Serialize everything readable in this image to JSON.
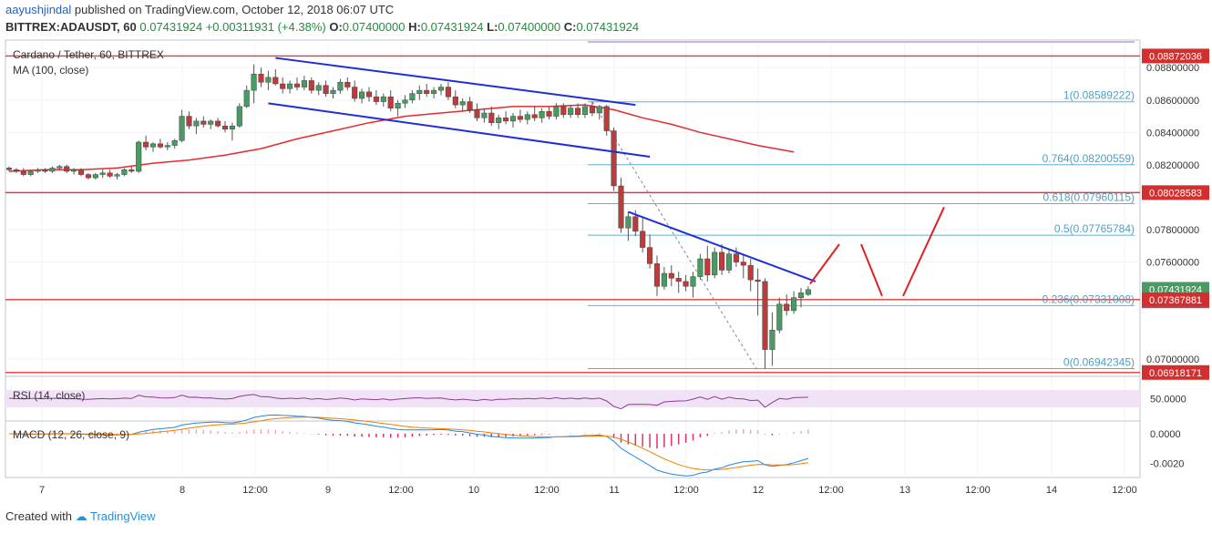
{
  "header": {
    "author": "aayushjindal",
    "published": "published on TradingView.com, October 12, 2018 06:07 UTC",
    "symbol": "BITTREX:ADAUSDT, 60",
    "last": "0.07431924",
    "change": "+0.00311931 (+4.38%)",
    "o_label": "O:",
    "o": "0.07400000",
    "h_label": "H:",
    "h": "0.07431924",
    "l_label": "L:",
    "l": "0.07400000",
    "c_label": "C:",
    "c": "0.07431924"
  },
  "legend": {
    "title": "Cardano / Tether, 60, BITTREX",
    "ma": "MA (100, close)",
    "rsi": "RSI (14, close)",
    "macd": "MACD (12, 26, close, 9)"
  },
  "footer": {
    "created": "Created with",
    "brand": "TradingView"
  },
  "colors": {
    "up": "#4a9a63",
    "down": "#c0393b",
    "ma": "#e52b2b",
    "hline": "#e53935",
    "trend": "#1f2fd6",
    "fib": "#5fb2d6",
    "rsi": "#8e3a99",
    "rsiband": "#f0e3f5",
    "macd": "#1e88e5",
    "signal": "#f57c00",
    "badge": "#d32f2f",
    "time_badge": "#4a7d9b"
  },
  "chart_data": {
    "type": "candlestick",
    "price_range": [
      0.069,
      0.0897
    ],
    "price_ticks": [
      "0.08800000",
      "0.08600000",
      "0.08400000",
      "0.08200000",
      "0.07800000",
      "0.07600000",
      "0.07000000"
    ],
    "x_ticks": [
      "7",
      "8",
      "12:00",
      "9",
      "12:00",
      "10",
      "12:00",
      "11",
      "12:00",
      "12",
      "12:00",
      "13",
      "12:00",
      "14",
      "12:00"
    ],
    "price_badges": [
      {
        "label": "0.08872036",
        "value": 0.08872036,
        "kind": "hline"
      },
      {
        "label": "0.08028583",
        "value": 0.08028583,
        "kind": "hline"
      },
      {
        "label": "0.07431924",
        "value": 0.07431924,
        "kind": "last"
      },
      {
        "label": "52:59",
        "value": 0.0736,
        "kind": "time"
      },
      {
        "label": "0.07367881",
        "value": 0.07367881,
        "kind": "hline"
      },
      {
        "label": "0.06918171",
        "value": 0.06918171,
        "kind": "hline"
      }
    ],
    "horizontal_lines": [
      0.08872036,
      0.08028583,
      0.07367881,
      0.06918171
    ],
    "fib_levels": [
      {
        "ratio": "1",
        "label": "1(0.08589222)",
        "value": 0.08589222
      },
      {
        "ratio": "0.764",
        "label": "0.764(0.08200559)",
        "value": 0.08200559
      },
      {
        "ratio": "0.618",
        "label": "0.618(0.07960115)",
        "value": 0.07960115
      },
      {
        "ratio": "0.5",
        "label": "0.5(0.07765784)",
        "value": 0.07765784
      },
      {
        "ratio": "0.236",
        "label": "0.236(0.07331008)",
        "value": 0.07331008
      },
      {
        "ratio": "0",
        "label": "0(0.06942345)",
        "value": 0.06942345
      }
    ],
    "candles": [
      [
        0.0818,
        0.0819,
        0.0816,
        0.0817
      ],
      [
        0.0817,
        0.0818,
        0.0815,
        0.0816
      ],
      [
        0.0816,
        0.0818,
        0.0813,
        0.0814
      ],
      [
        0.0814,
        0.0817,
        0.0813,
        0.0816
      ],
      [
        0.0816,
        0.0818,
        0.0815,
        0.0817
      ],
      [
        0.0817,
        0.0818,
        0.0815,
        0.0816
      ],
      [
        0.0816,
        0.0819,
        0.0815,
        0.0818
      ],
      [
        0.0818,
        0.082,
        0.0817,
        0.0819
      ],
      [
        0.0819,
        0.082,
        0.0815,
        0.0816
      ],
      [
        0.0816,
        0.0818,
        0.0814,
        0.0817
      ],
      [
        0.0817,
        0.0818,
        0.0813,
        0.0814
      ],
      [
        0.0814,
        0.0815,
        0.0811,
        0.0812
      ],
      [
        0.0812,
        0.0815,
        0.0811,
        0.0814
      ],
      [
        0.0814,
        0.0817,
        0.0812,
        0.0815
      ],
      [
        0.0815,
        0.0817,
        0.0812,
        0.0813
      ],
      [
        0.0813,
        0.0815,
        0.0811,
        0.0814
      ],
      [
        0.0814,
        0.0818,
        0.0813,
        0.0817
      ],
      [
        0.0817,
        0.0819,
        0.0815,
        0.0816
      ],
      [
        0.0816,
        0.0835,
        0.0815,
        0.0834
      ],
      [
        0.0834,
        0.0838,
        0.0829,
        0.0831
      ],
      [
        0.0831,
        0.0834,
        0.0828,
        0.0833
      ],
      [
        0.0833,
        0.0836,
        0.083,
        0.0831
      ],
      [
        0.0831,
        0.0834,
        0.0829,
        0.0832
      ],
      [
        0.0832,
        0.0836,
        0.083,
        0.0835
      ],
      [
        0.0835,
        0.0854,
        0.0834,
        0.085
      ],
      [
        0.085,
        0.0853,
        0.0842,
        0.0844
      ],
      [
        0.0844,
        0.0849,
        0.0839,
        0.0847
      ],
      [
        0.0847,
        0.085,
        0.0843,
        0.0845
      ],
      [
        0.0845,
        0.0848,
        0.0842,
        0.0847
      ],
      [
        0.0847,
        0.0849,
        0.0843,
        0.0844
      ],
      [
        0.0844,
        0.0847,
        0.084,
        0.0842
      ],
      [
        0.0842,
        0.0846,
        0.0835,
        0.0844
      ],
      [
        0.0844,
        0.0858,
        0.0843,
        0.0856
      ],
      [
        0.0856,
        0.0869,
        0.0855,
        0.0866
      ],
      [
        0.0866,
        0.0882,
        0.0858,
        0.0876
      ],
      [
        0.0876,
        0.088,
        0.0868,
        0.0871
      ],
      [
        0.0871,
        0.0878,
        0.0866,
        0.0874
      ],
      [
        0.0874,
        0.0879,
        0.0869,
        0.087
      ],
      [
        0.087,
        0.0874,
        0.0864,
        0.0867
      ],
      [
        0.0867,
        0.0872,
        0.0864,
        0.087
      ],
      [
        0.087,
        0.0874,
        0.0866,
        0.0868
      ],
      [
        0.0868,
        0.0875,
        0.0866,
        0.0872
      ],
      [
        0.0872,
        0.0874,
        0.0864,
        0.0866
      ],
      [
        0.0866,
        0.0871,
        0.0863,
        0.0869
      ],
      [
        0.0869,
        0.0872,
        0.0862,
        0.0864
      ],
      [
        0.0864,
        0.0868,
        0.0861,
        0.0866
      ],
      [
        0.0866,
        0.0873,
        0.0864,
        0.0871
      ],
      [
        0.0871,
        0.0874,
        0.0866,
        0.0868
      ],
      [
        0.0868,
        0.0872,
        0.0859,
        0.0861
      ],
      [
        0.0861,
        0.0867,
        0.0858,
        0.0865
      ],
      [
        0.0865,
        0.0868,
        0.0859,
        0.0862
      ],
      [
        0.0862,
        0.0866,
        0.0857,
        0.0859
      ],
      [
        0.0859,
        0.0864,
        0.0856,
        0.0862
      ],
      [
        0.0862,
        0.0866,
        0.0853,
        0.0855
      ],
      [
        0.0855,
        0.086,
        0.085,
        0.0858
      ],
      [
        0.0858,
        0.0863,
        0.0855,
        0.086
      ],
      [
        0.086,
        0.0866,
        0.0858,
        0.0864
      ],
      [
        0.0864,
        0.0869,
        0.086,
        0.0866
      ],
      [
        0.0866,
        0.087,
        0.0862,
        0.0864
      ],
      [
        0.0864,
        0.0868,
        0.0861,
        0.0866
      ],
      [
        0.0866,
        0.087,
        0.0863,
        0.0868
      ],
      [
        0.0868,
        0.0871,
        0.086,
        0.0862
      ],
      [
        0.0862,
        0.0866,
        0.0855,
        0.0857
      ],
      [
        0.0857,
        0.0861,
        0.0853,
        0.0859
      ],
      [
        0.0859,
        0.0862,
        0.0852,
        0.0854
      ],
      [
        0.0854,
        0.0858,
        0.0847,
        0.0849
      ],
      [
        0.0849,
        0.0855,
        0.0846,
        0.0852
      ],
      [
        0.0852,
        0.0856,
        0.0844,
        0.0846
      ],
      [
        0.0846,
        0.0851,
        0.0842,
        0.0849
      ],
      [
        0.0849,
        0.0853,
        0.0845,
        0.0847
      ],
      [
        0.0847,
        0.0852,
        0.0843,
        0.085
      ],
      [
        0.085,
        0.0854,
        0.0846,
        0.0848
      ],
      [
        0.0848,
        0.0853,
        0.0845,
        0.0851
      ],
      [
        0.0851,
        0.0856,
        0.0847,
        0.0849
      ],
      [
        0.0849,
        0.0855,
        0.0846,
        0.0853
      ],
      [
        0.0853,
        0.0856,
        0.0848,
        0.085
      ],
      [
        0.085,
        0.0858,
        0.0848,
        0.0856
      ],
      [
        0.0856,
        0.0858,
        0.0849,
        0.0851
      ],
      [
        0.0851,
        0.0857,
        0.0849,
        0.0855
      ],
      [
        0.0855,
        0.0858,
        0.0849,
        0.0851
      ],
      [
        0.0851,
        0.0858,
        0.0849,
        0.0856
      ],
      [
        0.0856,
        0.0859,
        0.085,
        0.0852
      ],
      [
        0.0852,
        0.0857,
        0.0848,
        0.0856
      ],
      [
        0.0856,
        0.0857,
        0.0838,
        0.0841
      ],
      [
        0.0841,
        0.0843,
        0.0804,
        0.0807
      ],
      [
        0.0807,
        0.0812,
        0.0778,
        0.0781
      ],
      [
        0.0781,
        0.0791,
        0.0773,
        0.0788
      ],
      [
        0.0788,
        0.0792,
        0.0776,
        0.0779
      ],
      [
        0.0779,
        0.0787,
        0.0766,
        0.0769
      ],
      [
        0.0769,
        0.0777,
        0.0756,
        0.0759
      ],
      [
        0.0759,
        0.0764,
        0.0739,
        0.0745
      ],
      [
        0.0745,
        0.0757,
        0.0743,
        0.0753
      ],
      [
        0.0753,
        0.0758,
        0.0745,
        0.075
      ],
      [
        0.075,
        0.0754,
        0.0741,
        0.0748
      ],
      [
        0.0748,
        0.0752,
        0.0742,
        0.0745
      ],
      [
        0.0745,
        0.0754,
        0.0738,
        0.0751
      ],
      [
        0.0751,
        0.0765,
        0.0749,
        0.0762
      ],
      [
        0.0762,
        0.077,
        0.0748,
        0.0752
      ],
      [
        0.0752,
        0.0769,
        0.075,
        0.0766
      ],
      [
        0.0766,
        0.0771,
        0.0752,
        0.0755
      ],
      [
        0.0755,
        0.0768,
        0.0753,
        0.0765
      ],
      [
        0.0765,
        0.0769,
        0.0757,
        0.076
      ],
      [
        0.076,
        0.0765,
        0.075,
        0.0758
      ],
      [
        0.0758,
        0.0762,
        0.0742,
        0.0749
      ],
      [
        0.0749,
        0.0756,
        0.0727,
        0.0748
      ],
      [
        0.0748,
        0.075,
        0.0694,
        0.0706
      ],
      [
        0.0706,
        0.0729,
        0.0696,
        0.0718
      ],
      [
        0.0718,
        0.0738,
        0.0716,
        0.0734
      ],
      [
        0.0734,
        0.074,
        0.0727,
        0.073
      ],
      [
        0.073,
        0.0742,
        0.0728,
        0.0738
      ],
      [
        0.0738,
        0.0744,
        0.0732,
        0.0741
      ],
      [
        0.074,
        0.0745,
        0.0739,
        0.0743
      ]
    ],
    "ma_line": [
      [
        0.0816,
        0
      ],
      [
        0.0817,
        5
      ],
      [
        0.0817,
        10
      ],
      [
        0.0818,
        15
      ],
      [
        0.0821,
        20
      ],
      [
        0.0823,
        25
      ],
      [
        0.0826,
        30
      ],
      [
        0.083,
        35
      ],
      [
        0.0836,
        40
      ],
      [
        0.0841,
        45
      ],
      [
        0.0846,
        50
      ],
      [
        0.085,
        55
      ],
      [
        0.0852,
        60
      ],
      [
        0.0854,
        65
      ],
      [
        0.0856,
        70
      ],
      [
        0.0856,
        75
      ],
      [
        0.0857,
        80
      ],
      [
        0.0854,
        84
      ],
      [
        0.0849,
        88
      ],
      [
        0.0845,
        92
      ],
      [
        0.084,
        96
      ],
      [
        0.0836,
        100
      ],
      [
        0.0832,
        104
      ],
      [
        0.0828,
        109
      ]
    ],
    "rsi_range": [
      0,
      100
    ],
    "rsi_ticks": [
      "50.0000"
    ],
    "rsi_band": [
      30,
      70
    ],
    "macd_range": [
      -0.0029,
      0.0008
    ],
    "macd_ticks": [
      "0.0000",
      "-0.0020"
    ],
    "trendlines": [
      {
        "from": [
          37,
          0.0886
        ],
        "to": [
          87,
          0.0857
        ]
      },
      {
        "from": [
          36,
          0.0858
        ],
        "to": [
          89,
          0.0825
        ]
      },
      {
        "from": [
          86,
          0.0791
        ],
        "to": [
          112,
          0.0748
        ]
      }
    ]
  }
}
